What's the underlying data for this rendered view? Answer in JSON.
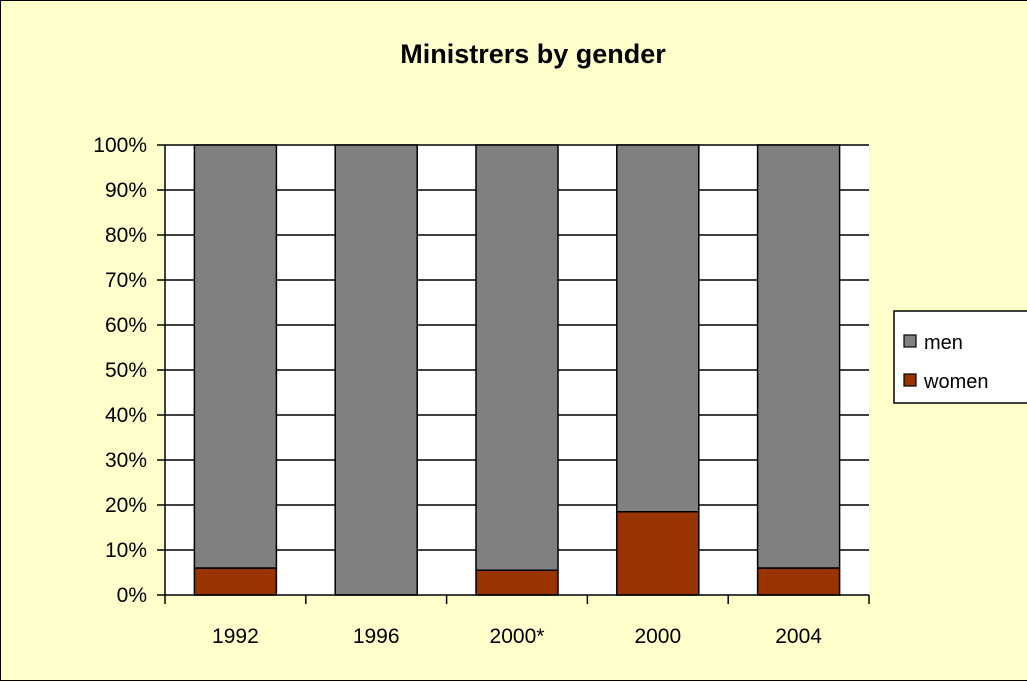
{
  "chart_data": {
    "type": "bar",
    "stacked": true,
    "percent": true,
    "title": "Ministrers by gender",
    "xlabel": "",
    "ylabel": "",
    "categories": [
      "1992",
      "1996",
      "2000*",
      "2000",
      "2004"
    ],
    "series": [
      {
        "name": "women",
        "values": [
          6,
          0,
          5.5,
          18.5,
          6
        ],
        "color": "#993300"
      },
      {
        "name": "men",
        "values": [
          94,
          100,
          94.5,
          81.5,
          94
        ],
        "color": "#808080"
      }
    ],
    "legend_order": [
      "men",
      "women"
    ],
    "ylim": [
      0,
      100
    ],
    "y_ticks": [
      "0%",
      "10%",
      "20%",
      "30%",
      "40%",
      "50%",
      "60%",
      "70%",
      "80%",
      "90%",
      "100%"
    ],
    "grid": true,
    "legend_position": "right",
    "colors": {
      "background": "#ffffcc",
      "plot_background": "#ffffff",
      "gridline": "#000000"
    }
  }
}
